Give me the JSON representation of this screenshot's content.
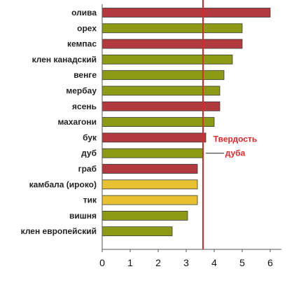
{
  "chart_data": {
    "type": "bar",
    "orientation": "horizontal",
    "categories": [
      "олива",
      "орех",
      "кемпас",
      "клен канадский",
      "венге",
      "мербау",
      "ясень",
      "махагони",
      "бук",
      "дуб",
      "граб",
      "камбала (ироко)",
      "тик",
      "вишня",
      "клен европейский"
    ],
    "values": [
      6.0,
      5.0,
      5.0,
      4.65,
      4.35,
      4.2,
      4.2,
      4.0,
      3.7,
      3.6,
      3.4,
      3.4,
      3.4,
      3.05,
      2.5
    ],
    "bar_colors": [
      "#b23a3f",
      "#8c9a16",
      "#b23a3f",
      "#8c9a16",
      "#8c9a16",
      "#8c9a16",
      "#b23a3f",
      "#8c9a16",
      "#b23a3f",
      "#8c9a16",
      "#b23a3f",
      "#e8c132",
      "#e8c132",
      "#8c9a16",
      "#8c9a16"
    ],
    "xlim": [
      0,
      6
    ],
    "xticks": [
      0,
      1,
      2,
      3,
      4,
      5,
      6
    ],
    "reference_line": {
      "value": 3.6,
      "color": "#e0262a",
      "label_lines": [
        "Твердость",
        "дуба"
      ]
    },
    "grid": false
  }
}
